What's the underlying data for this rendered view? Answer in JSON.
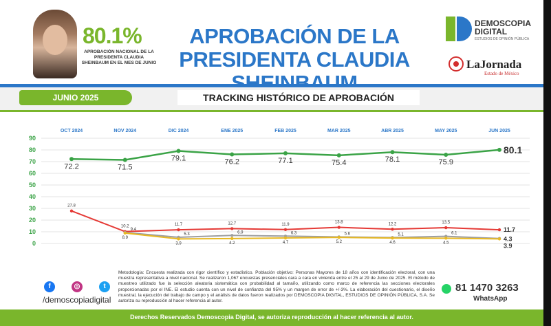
{
  "header": {
    "approval_pct": "80.1%",
    "approval_label": "APROBACIÓN NACIONAL DE LA PRESIDENTA CLAUDIA SHEINBAUM EN EL MES DE JUNIO",
    "title": "APROBACIÓN DE LA PRESIDENTA CLAUDIA SHEINBAUM",
    "pollster_name": "DEMOSCOPIA DIGITAL",
    "pollster_sub": "ESTUDIOS DE OPINIÓN PÚBLICA",
    "partner_name": "LaJornada",
    "partner_sub": "Estado de México"
  },
  "band": {
    "month": "JUNIO 2025",
    "title": "TRACKING HISTÓRICO DE APROBACIÓN"
  },
  "chart_data": {
    "type": "line",
    "categories": [
      "OCT 2024",
      "NOV 2024",
      "DIC 2024",
      "ENE 2025",
      "FEB 2025",
      "MAR 2025",
      "ABR 2025",
      "MAY 2025",
      "JUN 2025"
    ],
    "y_ticks": [
      "0",
      "10",
      "20",
      "30",
      "40",
      "50",
      "60",
      "70",
      "80",
      "90"
    ],
    "ylim": [
      0,
      90
    ],
    "grid": true,
    "series": [
      {
        "color": "#3aa346",
        "values": [
          72.2,
          71.5,
          79.1,
          76.2,
          77.1,
          75.4,
          78.1,
          75.9,
          80.1
        ],
        "labels": [
          "72.2",
          "71.5",
          "79.1",
          "76.2",
          "77.1",
          "75.4",
          "78.1",
          "75.9",
          "80.1"
        ]
      },
      {
        "color": "#e53935",
        "values": [
          27.8,
          10.2,
          11.7,
          12.7,
          11.9,
          13.8,
          12.2,
          13.5,
          11.7
        ],
        "labels": [
          "27.8",
          "10.2",
          "11.7",
          "12.7",
          "11.9",
          "13.8",
          "12.2",
          "13.5",
          "11.7"
        ]
      },
      {
        "color": "#9e9e9e",
        "values": [
          null,
          9.4,
          5.3,
          6.9,
          6.3,
          5.6,
          5.1,
          6.1,
          4.3
        ],
        "labels": [
          "",
          "9.4",
          "5.3",
          "6.9",
          "6.3",
          "5.6",
          "5.1",
          "6.1",
          "4.3"
        ]
      },
      {
        "color": "#e8b923",
        "values": [
          null,
          8.9,
          3.9,
          4.2,
          4.7,
          5.2,
          4.6,
          4.5,
          3.9
        ],
        "labels": [
          "",
          "8.9",
          "3.9",
          "4.2",
          "4.7",
          "5.2",
          "4.6",
          "4.5",
          "3.9"
        ]
      }
    ]
  },
  "methodology": "Metodología: Encuesta realizada con rigor científico y estadístico. Población objetivo: Personas Mayores de 18 años con identificación electoral, con una muestra representativa a nivel nacional. Se realizaron 1,067 encuestas presenciales cara a cara en vivienda entre el 25 al 29 de Junio de 2025. El método de muestreo utilizado fue la selección aleatoria sistemática con probabilidad al tamaño, utilizando como marco de referencia las secciones electorales proporcionadas por el INE. El estudio cuenta con un nivel de confianza del 95% y un margen de error de +/-3%. La elaboración del cuestionario, el diseño muestral, la ejecución del trabajo de campo y el análisis de datos fueron realizados por DEMOSCOPIA DIGITAL, ESTUDIOS DE OPINIÓN PÚBLICA, S.A. Se autoriza su reproducción al hacer referencia al autor.",
  "social": {
    "handle": "/demoscopiadigital",
    "facebook_icon": "f",
    "instagram_icon": "◎",
    "twitter_icon": "t"
  },
  "whatsapp": {
    "number": "81 1470 3263",
    "label": "WhatsApp"
  },
  "footer": "Derechos Reservados Demoscopia Digital, se autoriza reproducción al hacer referencia al autor."
}
